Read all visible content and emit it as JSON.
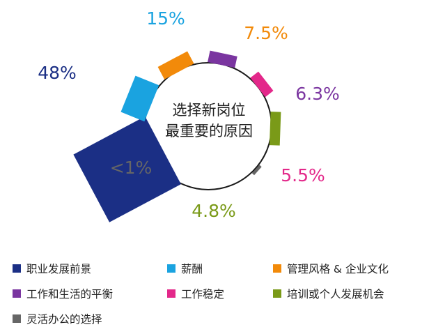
{
  "chart_data": {
    "type": "pie",
    "center_label": [
      "选择新岗位",
      "最重要的原因"
    ],
    "unit": "%",
    "categories": [
      "职业发展前景",
      "薪酬",
      "管理风格 & 企业文化",
      "工作和生活的平衡",
      "工作稳定",
      "培训或个人发展机会",
      "灵活办公的选择"
    ],
    "values": [
      48,
      15,
      7.5,
      6.3,
      5.5,
      4.8,
      1
    ],
    "value_labels": [
      "48%",
      "15%",
      "7.5%",
      "6.3%",
      "5.5%",
      "4.8%",
      "<1%"
    ],
    "colors": [
      "#1b2f85",
      "#1aa3e0",
      "#f28a0a",
      "#7a35a0",
      "#e3288a",
      "#7a9a18",
      "#666666"
    ],
    "legend_position": "bottom"
  }
}
